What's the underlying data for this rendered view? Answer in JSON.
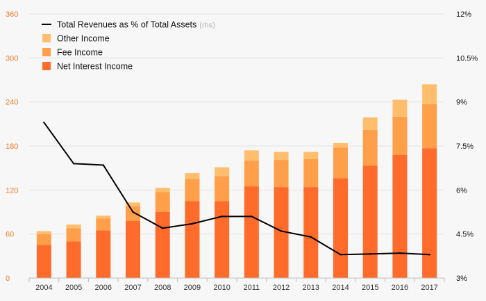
{
  "chart_data": {
    "type": "bar",
    "stacked": true,
    "categories": [
      "2004",
      "2005",
      "2006",
      "2007",
      "2008",
      "2009",
      "2010",
      "2011",
      "2012",
      "2013",
      "2014",
      "2015",
      "2016",
      "2017"
    ],
    "series": [
      {
        "name": "Net Interest Income",
        "color": "#ff6b2b",
        "values": [
          45,
          50,
          65,
          78,
          90,
          105,
          105,
          125,
          124,
          124,
          136,
          153,
          168,
          177
        ]
      },
      {
        "name": "Fee Income",
        "color": "#ff9f4a",
        "values": [
          15,
          18,
          16,
          20,
          27,
          30,
          34,
          35,
          37,
          38,
          42,
          49,
          52,
          60
        ]
      },
      {
        "name": "Other Income",
        "color": "#ffbe6e",
        "values": [
          4,
          5,
          4,
          5,
          6,
          8,
          12,
          14,
          11,
          10,
          6,
          17,
          23,
          27
        ]
      }
    ],
    "line_series": {
      "name": "Total Revenues as % of Total Assets",
      "note": "(rhs)",
      "color": "#000000",
      "values": [
        8.3,
        6.9,
        6.85,
        5.25,
        4.7,
        4.85,
        5.1,
        5.1,
        4.6,
        4.4,
        3.8,
        3.82,
        3.85,
        3.8
      ]
    },
    "y_left": {
      "ticks": [
        "0",
        "60",
        "120",
        "180",
        "240",
        "300",
        "360"
      ],
      "range": [
        0,
        360
      ]
    },
    "y_right": {
      "ticks": [
        "3%",
        "4.5%",
        "6%",
        "7.5%",
        "9%",
        "10.5%",
        "12%"
      ],
      "range": [
        3,
        12
      ]
    },
    "legend": [
      {
        "label": "Total Revenues as % of Total Assets",
        "note": "(rhs)",
        "kind": "line",
        "color": "#000000"
      },
      {
        "label": "Other Income",
        "kind": "box",
        "color": "#ffbe6e"
      },
      {
        "label": "Fee Income",
        "kind": "box",
        "color": "#ff9f4a"
      },
      {
        "label": "Net Interest Income",
        "kind": "box",
        "color": "#ff6b2b"
      }
    ],
    "legend_position": "top-left",
    "grid": true
  }
}
